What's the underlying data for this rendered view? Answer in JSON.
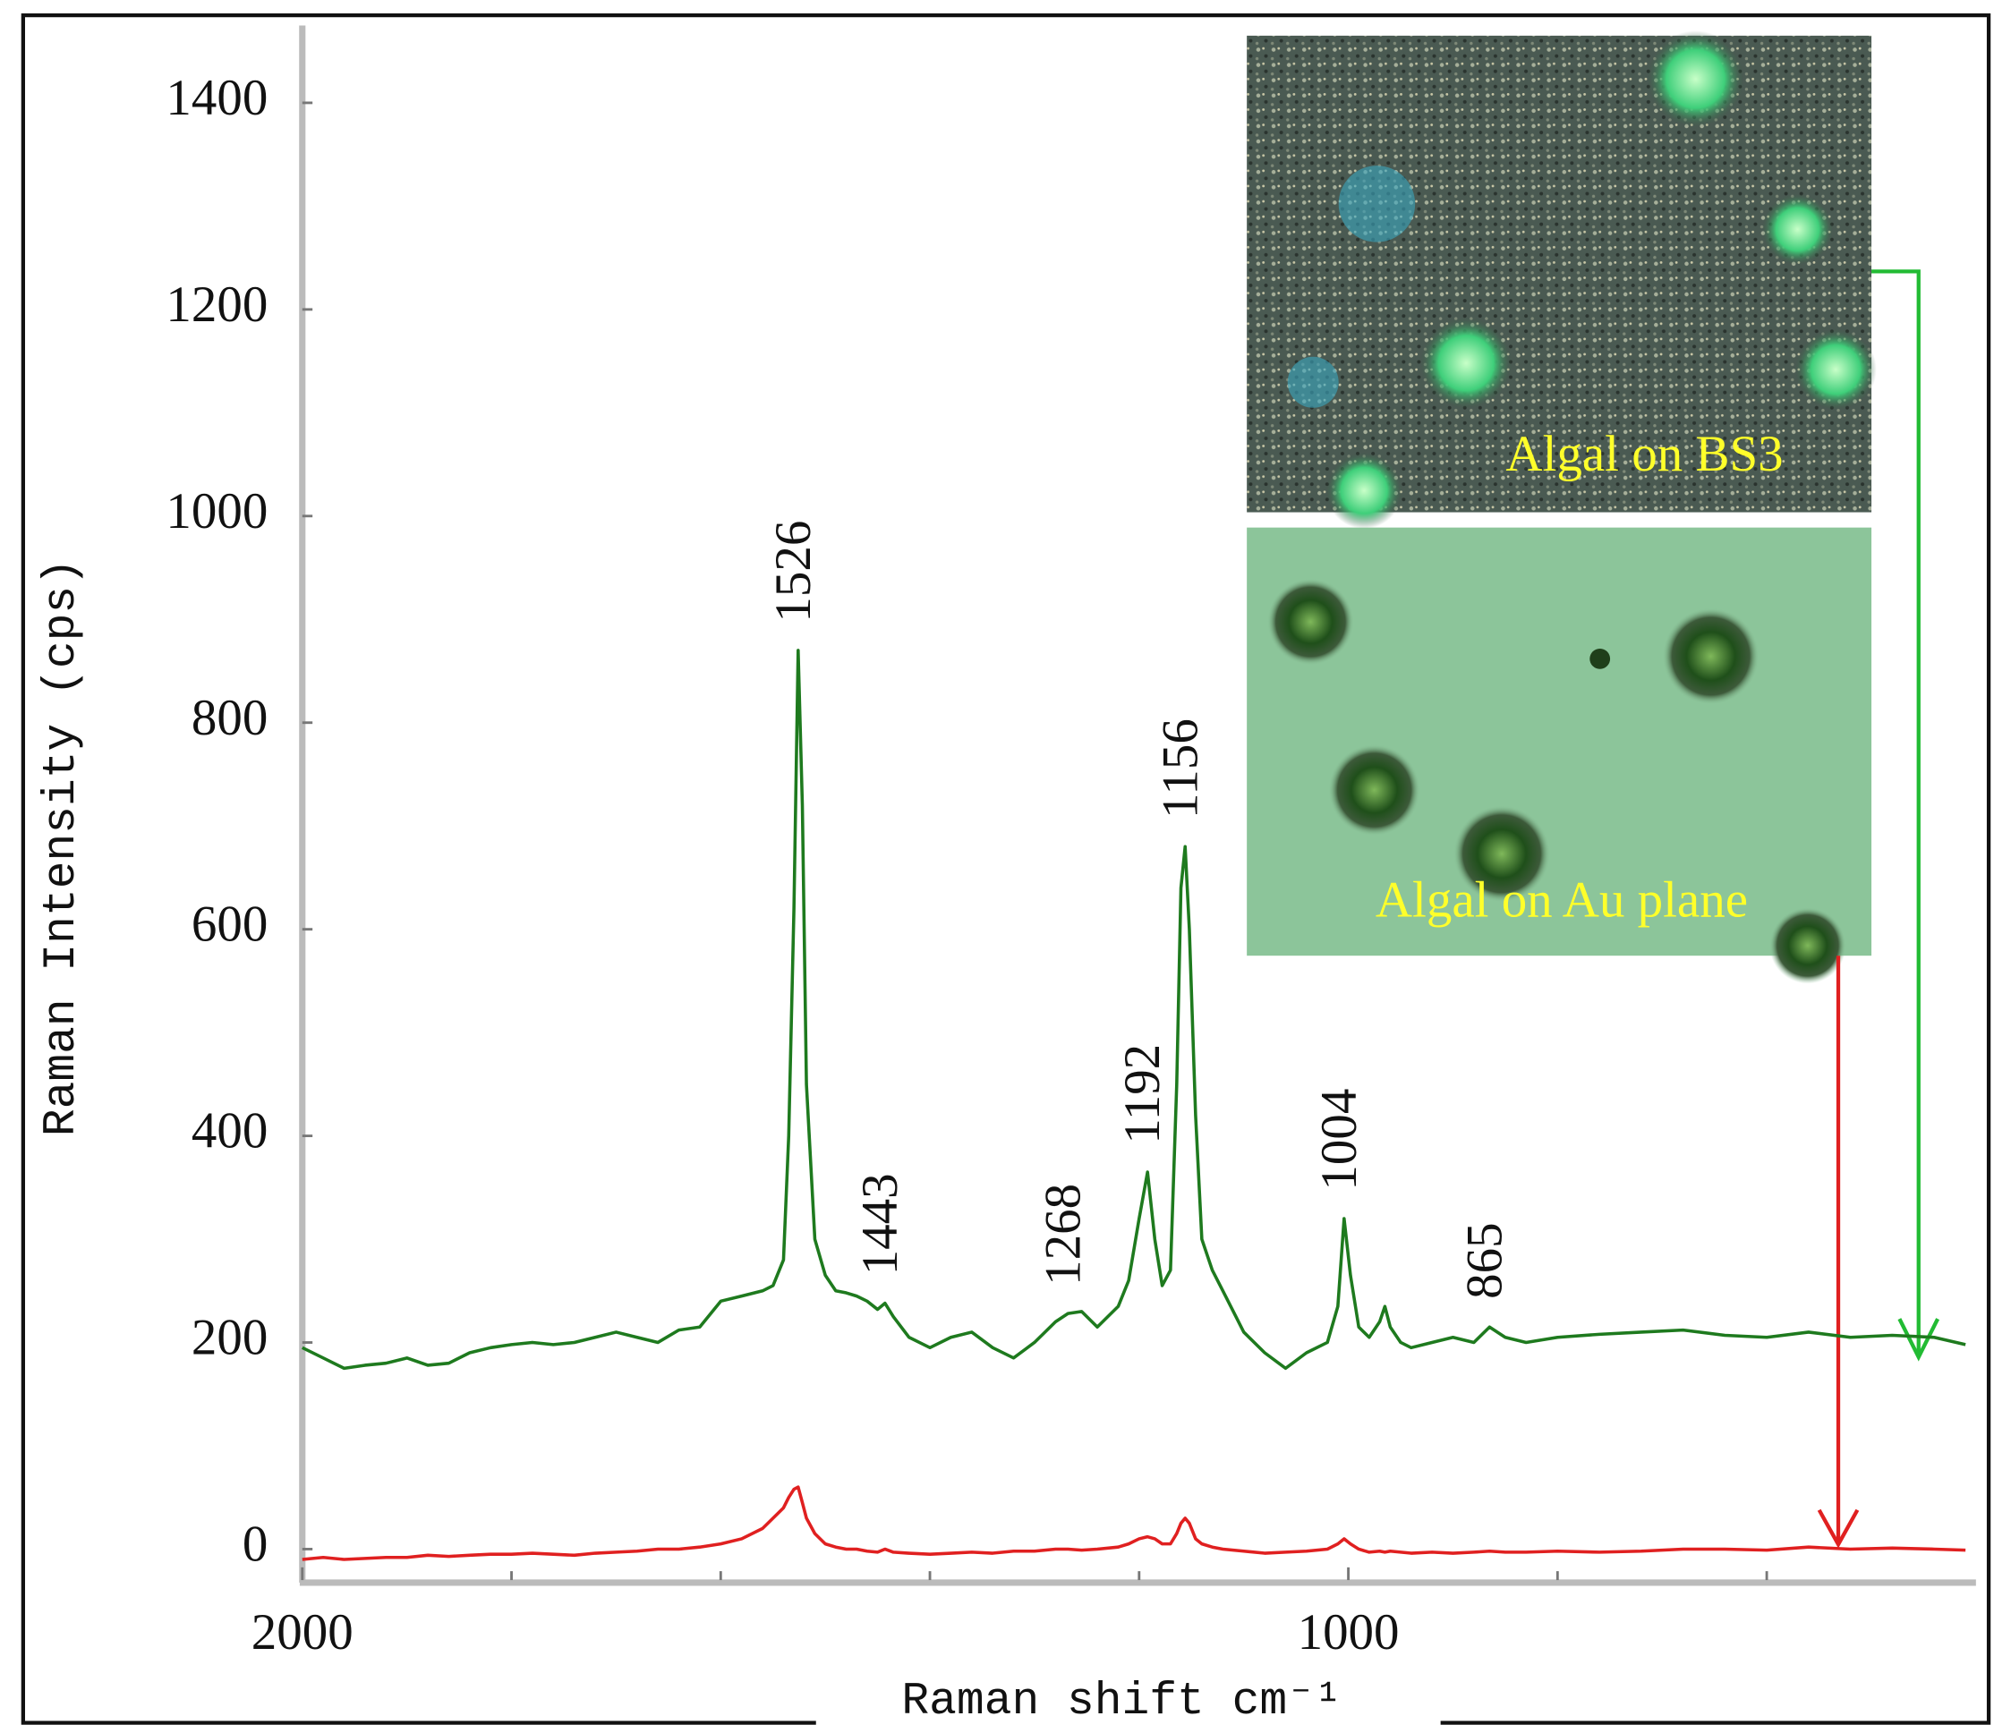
{
  "chart_data": {
    "type": "line",
    "x_label": "Raman shift  cm⁻¹",
    "y_label": "Raman Intensity (cps)",
    "xlim": [
      2000,
      400
    ],
    "ylim": [
      -30,
      1465
    ],
    "xticks": [
      2000,
      1000
    ],
    "xticks_minor": [
      1800,
      1600,
      1400,
      1200,
      800,
      600
    ],
    "yticks": [
      0,
      200,
      400,
      600,
      800,
      1000,
      1200,
      1400
    ],
    "x": [
      2000,
      1980,
      1960,
      1940,
      1920,
      1900,
      1880,
      1860,
      1840,
      1820,
      1800,
      1780,
      1760,
      1740,
      1720,
      1700,
      1680,
      1660,
      1640,
      1620,
      1600,
      1580,
      1560,
      1550,
      1540,
      1535,
      1530,
      1526,
      1522,
      1518,
      1510,
      1500,
      1490,
      1480,
      1470,
      1460,
      1450,
      1443,
      1435,
      1420,
      1400,
      1380,
      1360,
      1340,
      1320,
      1300,
      1280,
      1268,
      1255,
      1240,
      1220,
      1210,
      1200,
      1192,
      1185,
      1178,
      1170,
      1164,
      1160,
      1156,
      1152,
      1146,
      1140,
      1130,
      1120,
      1100,
      1080,
      1060,
      1040,
      1020,
      1010,
      1004,
      998,
      990,
      980,
      970,
      965,
      960,
      950,
      940,
      920,
      900,
      880,
      865,
      850,
      830,
      800,
      760,
      720,
      680,
      640,
      600,
      560,
      520,
      480,
      440,
      410
    ],
    "series": [
      {
        "color": "#1e7a1e",
        "values": [
          195,
          185,
          175,
          178,
          180,
          185,
          178,
          180,
          190,
          195,
          198,
          200,
          198,
          200,
          205,
          210,
          205,
          200,
          212,
          215,
          240,
          245,
          250,
          255,
          280,
          400,
          620,
          870,
          720,
          450,
          300,
          265,
          250,
          248,
          245,
          240,
          232,
          238,
          225,
          205,
          195,
          205,
          210,
          195,
          185,
          200,
          220,
          228,
          230,
          215,
          235,
          260,
          320,
          365,
          300,
          255,
          270,
          450,
          640,
          680,
          600,
          420,
          300,
          270,
          250,
          210,
          190,
          175,
          190,
          200,
          235,
          320,
          265,
          215,
          205,
          220,
          235,
          215,
          200,
          195,
          200,
          205,
          200,
          215,
          205,
          200,
          205,
          208,
          210,
          212,
          207,
          205,
          210,
          205,
          207,
          205,
          198
        ]
      },
      {
        "color": "#e02020",
        "values": [
          -10,
          -8,
          -10,
          -9,
          -8,
          -8,
          -6,
          -7,
          -6,
          -5,
          -5,
          -4,
          -5,
          -6,
          -4,
          -3,
          -2,
          0,
          0,
          2,
          5,
          10,
          20,
          30,
          40,
          50,
          58,
          60,
          45,
          30,
          15,
          5,
          2,
          0,
          0,
          -2,
          -3,
          0,
          -3,
          -4,
          -5,
          -4,
          -3,
          -4,
          -2,
          -2,
          0,
          0,
          -1,
          0,
          2,
          5,
          10,
          12,
          10,
          5,
          5,
          15,
          25,
          30,
          25,
          10,
          5,
          2,
          0,
          -2,
          -4,
          -3,
          -2,
          0,
          5,
          10,
          5,
          0,
          -3,
          -2,
          -3,
          -2,
          -3,
          -4,
          -3,
          -4,
          -3,
          -2,
          -3,
          -3,
          -2,
          -3,
          -2,
          0,
          0,
          -1,
          2,
          0,
          1,
          0,
          -1
        ]
      }
    ],
    "annotations": [
      {
        "text": "1526",
        "x": 1526
      },
      {
        "text": "1443",
        "x": 1443
      },
      {
        "text": "1268",
        "x": 1268
      },
      {
        "text": "1192",
        "x": 1192
      },
      {
        "text": "1156",
        "x": 1156
      },
      {
        "text": "1004",
        "x": 1004
      },
      {
        "text": "865",
        "x": 865
      }
    ],
    "insets": [
      {
        "label": "Algal  on BS3"
      },
      {
        "label": "Algal  on Au plane"
      }
    ]
  }
}
